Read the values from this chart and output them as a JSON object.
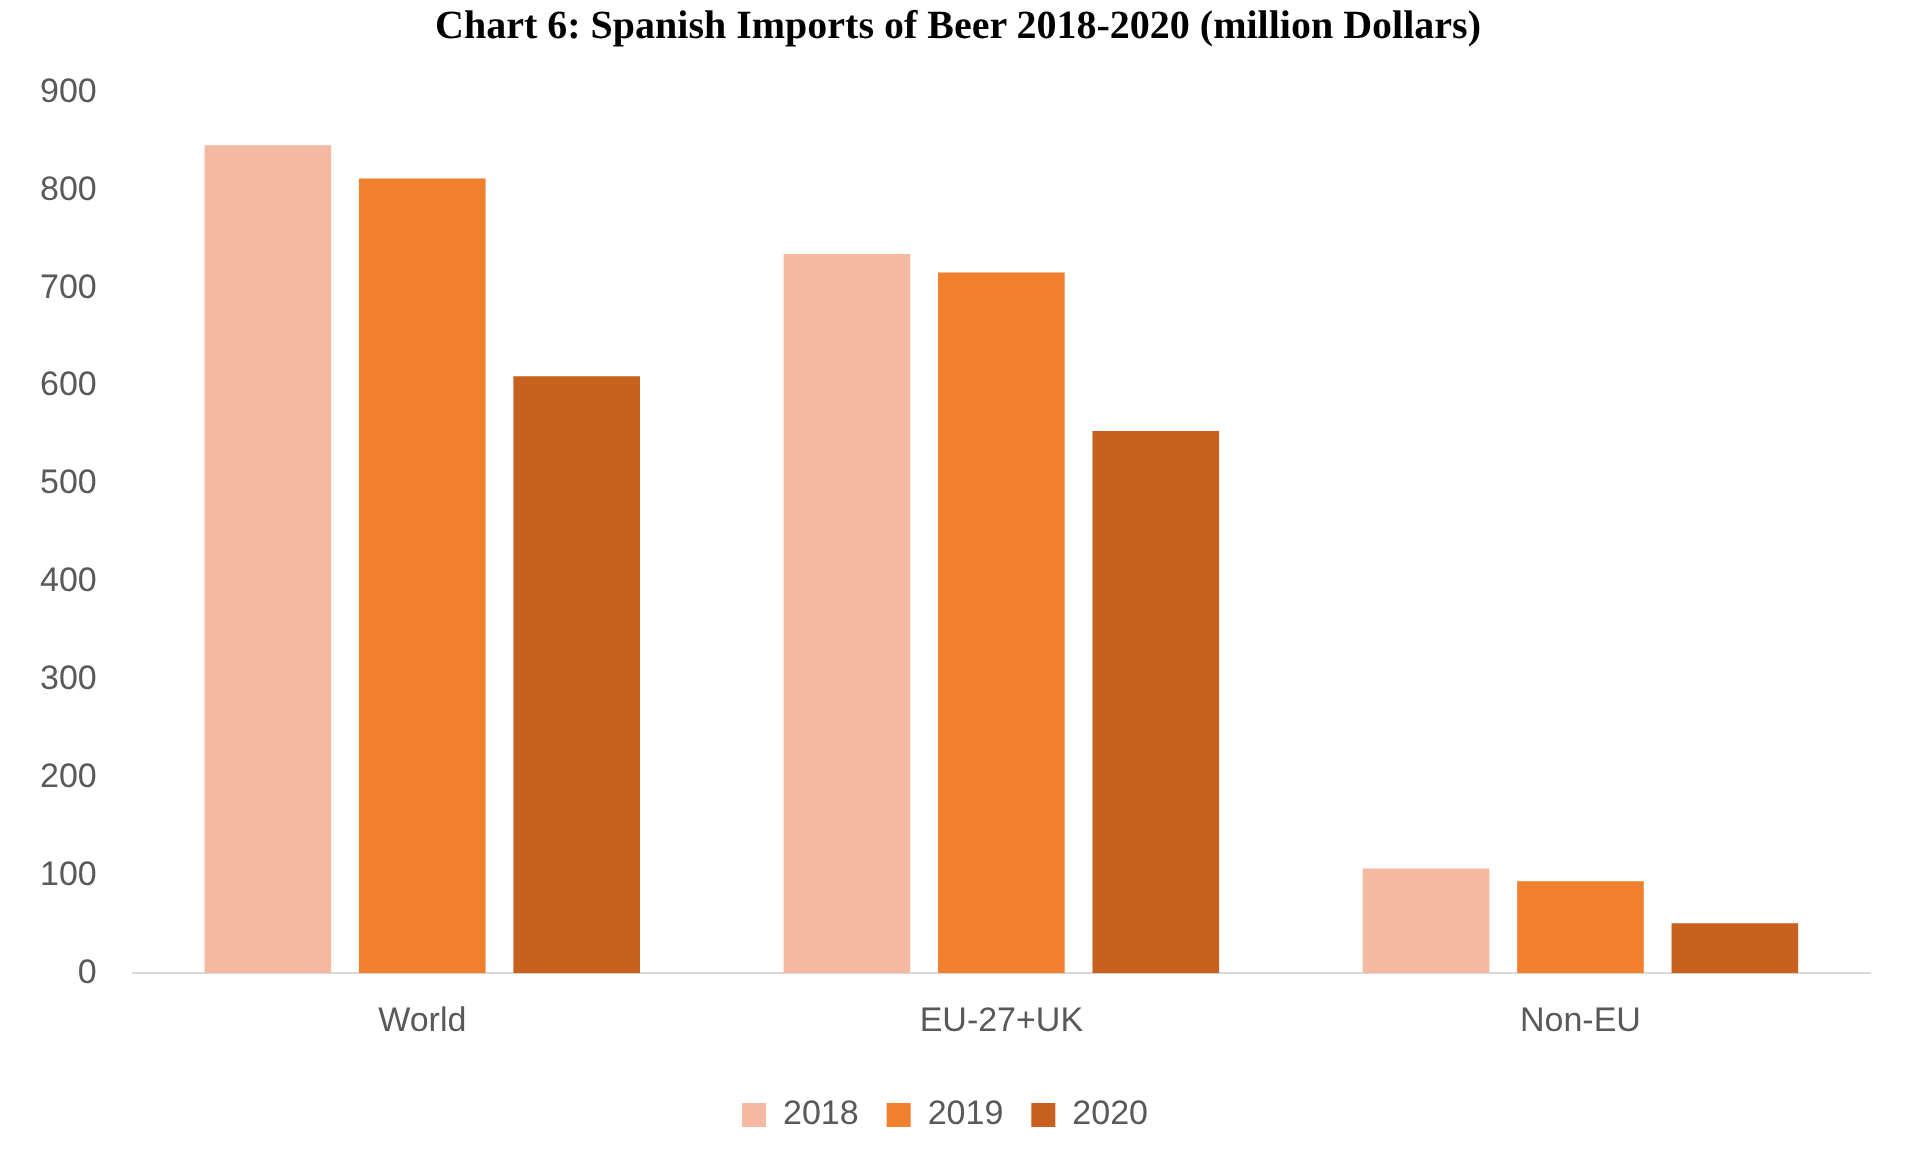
{
  "chart_data": {
    "type": "bar",
    "title": "Chart 6: Spanish Imports of Beer 2018-2020 (million Dollars)",
    "categories": [
      "World",
      "EU-27+UK",
      "Non-EU"
    ],
    "series": [
      {
        "name": "2018",
        "color": "#f4b9a0",
        "values": [
          846,
          735,
          107
        ]
      },
      {
        "name": "2019",
        "color": "#f07f2e",
        "values": [
          812,
          716,
          94
        ]
      },
      {
        "name": "2020",
        "color": "#c8611f",
        "values": [
          610,
          554,
          51
        ]
      }
    ],
    "ylim": [
      0,
      900
    ],
    "yticks": [
      0,
      100,
      200,
      300,
      400,
      500,
      600,
      700,
      800,
      900
    ],
    "grid": false,
    "legend": "bottom"
  }
}
